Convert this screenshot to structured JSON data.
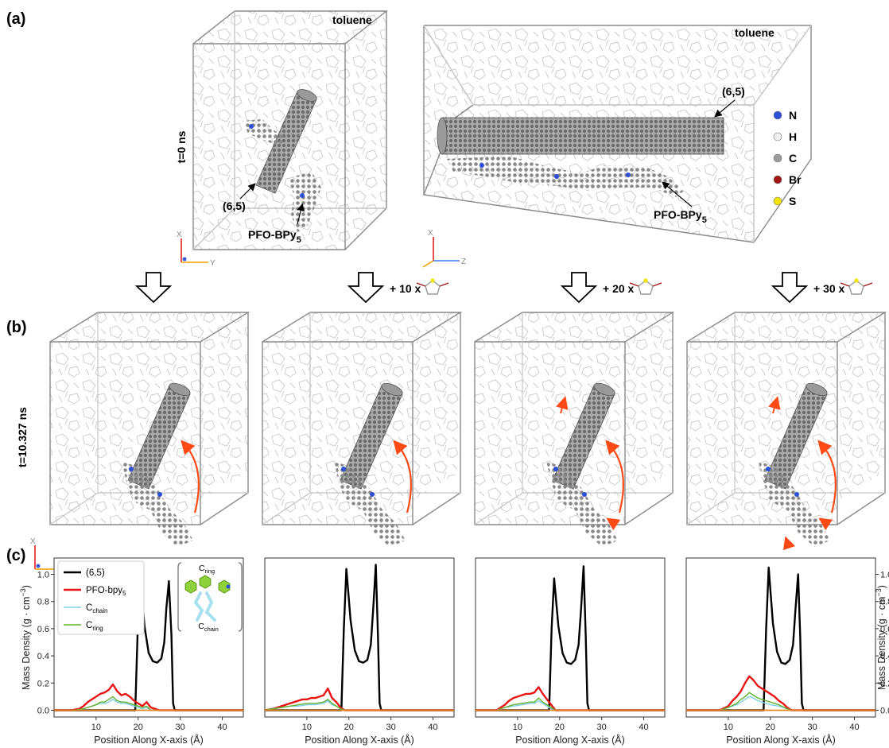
{
  "panels": {
    "a": "(a)",
    "b": "(b)",
    "c": "(c)"
  },
  "row_a": {
    "time_label": "t=0 ns",
    "left_box": {
      "solvent": "toluene",
      "tube": "(6,5)",
      "polymer": "PFO-BPy",
      "polymer_sub": "5"
    },
    "right_box": {
      "solvent": "toluene",
      "tube": "(6,5)",
      "polymer": "PFO-BPy",
      "polymer_sub": "5"
    },
    "axes_left": {
      "vertical": "X",
      "horizontal": "Y"
    },
    "axes_right": {
      "vertical": "X",
      "horizontal": "Z"
    },
    "legend": [
      {
        "symbol": "N",
        "color": "#2b4fd6"
      },
      {
        "symbol": "H",
        "color": "#f0f0f0"
      },
      {
        "symbol": "C",
        "color": "#9a9a9a"
      },
      {
        "symbol": "Br",
        "color": "#a01515"
      },
      {
        "symbol": "S",
        "color": "#f2e400"
      }
    ]
  },
  "row_b": {
    "time_label": "t=10.327 ns",
    "additions": [
      "",
      "+ 10 x",
      "+ 20 x",
      "+ 30 x"
    ],
    "axes": {
      "vertical": "X",
      "horizontal": "Y"
    },
    "colors": {
      "arrow": "#ff4a16",
      "box": "#8a8a8a"
    }
  },
  "chart_data": [
    {
      "type": "line",
      "xlabel": "Position Along X-axis (Å)",
      "ylabel": "Mass Density (g · cm",
      "ylabel_sup": "−3",
      "ylabel_close": ")",
      "xlim": [
        0,
        45
      ],
      "ylim": [
        -0.05,
        1.12
      ],
      "xticks": [
        10,
        20,
        30,
        40
      ],
      "yticks": [
        0.0,
        0.2,
        0.4,
        0.6,
        0.8,
        1.0
      ],
      "legend": [
        "(6,5)",
        "PFO-bpy5",
        "Cchain",
        "Cring"
      ],
      "inset": {
        "top": "C",
        "top_sub": "ring",
        "bottom": "C",
        "bottom_sub": "chain"
      },
      "series": [
        {
          "name": "(6,5)",
          "color": "#000000",
          "x": [
            0,
            19.3,
            19.9,
            20.5,
            21.5,
            22.5,
            23.5,
            24.5,
            25.5,
            26.2,
            26.7,
            27.3,
            27.9,
            28.3,
            28.7,
            45
          ],
          "y": [
            0,
            0,
            0.6,
            1.0,
            0.62,
            0.42,
            0.36,
            0.35,
            0.38,
            0.5,
            0.75,
            0.95,
            0.55,
            0.05,
            0,
            0
          ]
        },
        {
          "name": "PFO-bpy5",
          "color": "#e81414",
          "x": [
            0,
            4,
            6,
            7,
            8,
            9,
            10,
            11,
            12,
            13,
            14,
            15,
            16,
            17,
            18,
            19,
            20,
            21,
            22,
            23,
            24,
            25,
            45
          ],
          "y": [
            0,
            0,
            0.01,
            0.03,
            0.06,
            0.08,
            0.1,
            0.12,
            0.13,
            0.15,
            0.19,
            0.14,
            0.11,
            0.12,
            0.1,
            0.07,
            0.05,
            0.03,
            0.06,
            0.02,
            0.01,
            0,
            0
          ]
        },
        {
          "name": "Cchain",
          "color": "#7fd0e6",
          "x": [
            0,
            5,
            7,
            8,
            9,
            10,
            11,
            12,
            13,
            14,
            15,
            16,
            17,
            18,
            19,
            20,
            21,
            22,
            23,
            45
          ],
          "y": [
            0,
            0,
            0.01,
            0.02,
            0.03,
            0.04,
            0.05,
            0.05,
            0.06,
            0.08,
            0.06,
            0.05,
            0.05,
            0.04,
            0.03,
            0.02,
            0.01,
            0.02,
            0,
            0
          ]
        },
        {
          "name": "Cring",
          "color": "#62b02e",
          "x": [
            0,
            5,
            7,
            8,
            9,
            10,
            11,
            12,
            13,
            14,
            15,
            16,
            17,
            18,
            19,
            20,
            21,
            22,
            23,
            45
          ],
          "y": [
            0,
            0,
            0.01,
            0.02,
            0.03,
            0.04,
            0.06,
            0.06,
            0.08,
            0.1,
            0.07,
            0.06,
            0.06,
            0.05,
            0.04,
            0.03,
            0.02,
            0.03,
            0,
            0
          ]
        },
        {
          "name": "baseline",
          "color": "#e8851c",
          "x": [
            0,
            45
          ],
          "y": [
            0,
            0
          ]
        }
      ]
    },
    {
      "type": "line",
      "xlabel": "Position Along X-axis (Å)",
      "xlim": [
        0,
        45
      ],
      "ylim": [
        -0.05,
        1.12
      ],
      "xticks": [
        10,
        20,
        30,
        40
      ],
      "series": [
        {
          "name": "(6,5)",
          "color": "#000000",
          "x": [
            0,
            18.2,
            18.8,
            19.4,
            20.4,
            21.4,
            22.4,
            23.4,
            24.4,
            25.2,
            25.8,
            26.4,
            26.9,
            27.3,
            27.7,
            45
          ],
          "y": [
            0,
            0,
            0.6,
            1.04,
            0.66,
            0.44,
            0.36,
            0.35,
            0.37,
            0.48,
            0.76,
            1.07,
            0.55,
            0.05,
            0,
            0
          ]
        },
        {
          "name": "PFO-bpy5",
          "color": "#e81414",
          "x": [
            0,
            2,
            3,
            4,
            5,
            6,
            7,
            8,
            9,
            10,
            11,
            12,
            13,
            14,
            15,
            16,
            17,
            18,
            19,
            45
          ],
          "y": [
            0,
            0.01,
            0.02,
            0.03,
            0.04,
            0.05,
            0.06,
            0.07,
            0.08,
            0.08,
            0.09,
            0.09,
            0.1,
            0.11,
            0.16,
            0.09,
            0.06,
            0.02,
            0,
            0
          ]
        },
        {
          "name": "Cchain",
          "color": "#7fd0e6",
          "x": [
            0,
            2,
            4,
            6,
            8,
            10,
            12,
            14,
            15,
            16,
            17,
            18,
            19,
            45
          ],
          "y": [
            0,
            0.01,
            0.02,
            0.03,
            0.03,
            0.04,
            0.04,
            0.05,
            0.07,
            0.04,
            0.03,
            0.01,
            0,
            0
          ]
        },
        {
          "name": "Cring",
          "color": "#62b02e",
          "x": [
            0,
            2,
            4,
            6,
            8,
            10,
            12,
            14,
            15,
            16,
            17,
            18,
            19,
            45
          ],
          "y": [
            0,
            0.01,
            0.02,
            0.03,
            0.04,
            0.05,
            0.05,
            0.06,
            0.08,
            0.05,
            0.03,
            0.01,
            0,
            0
          ]
        },
        {
          "name": "baseline",
          "color": "#e8851c",
          "x": [
            0,
            45
          ],
          "y": [
            0,
            0
          ]
        }
      ]
    },
    {
      "type": "line",
      "xlabel": "Position Along X-axis (Å)",
      "xlim": [
        0,
        45
      ],
      "ylim": [
        -0.05,
        1.12
      ],
      "xticks": [
        10,
        20,
        30,
        40
      ],
      "series": [
        {
          "name": "(6,5)",
          "color": "#000000",
          "x": [
            0,
            17.5,
            18.1,
            18.7,
            19.7,
            20.7,
            21.7,
            22.7,
            23.7,
            24.5,
            25.1,
            25.7,
            26.2,
            26.6,
            27,
            45
          ],
          "y": [
            0,
            0,
            0.6,
            0.97,
            0.62,
            0.42,
            0.35,
            0.34,
            0.37,
            0.48,
            0.75,
            1.06,
            0.55,
            0.05,
            0,
            0
          ]
        },
        {
          "name": "PFO-bpy5",
          "color": "#e81414",
          "x": [
            0,
            5,
            6,
            7,
            8,
            9,
            10,
            11,
            12,
            13,
            14,
            15,
            16,
            17,
            18,
            19,
            45
          ],
          "y": [
            0,
            0,
            0.02,
            0.04,
            0.07,
            0.09,
            0.1,
            0.11,
            0.12,
            0.12,
            0.13,
            0.17,
            0.12,
            0.08,
            0.04,
            0,
            0
          ]
        },
        {
          "name": "Cchain",
          "color": "#7fd0e6",
          "x": [
            0,
            5,
            7,
            9,
            11,
            13,
            14,
            15,
            16,
            17,
            18,
            19,
            45
          ],
          "y": [
            0,
            0,
            0.02,
            0.03,
            0.04,
            0.05,
            0.05,
            0.07,
            0.05,
            0.03,
            0.01,
            0,
            0
          ]
        },
        {
          "name": "Cring",
          "color": "#62b02e",
          "x": [
            0,
            5,
            7,
            9,
            11,
            13,
            14,
            15,
            16,
            17,
            18,
            19,
            45
          ],
          "y": [
            0,
            0,
            0.02,
            0.04,
            0.05,
            0.06,
            0.06,
            0.09,
            0.06,
            0.04,
            0.02,
            0,
            0
          ]
        },
        {
          "name": "baseline",
          "color": "#e8851c",
          "x": [
            0,
            45
          ],
          "y": [
            0,
            0
          ]
        }
      ]
    },
    {
      "type": "line",
      "xlabel": "Position Along X-axis (Å)",
      "yticks": [
        0.0,
        0.2,
        0.4,
        0.6,
        0.8,
        1.0
      ],
      "ylabel": "Mass Density (g · cm",
      "ylabel_sup": "−3",
      "ylabel_close": ")",
      "xlim": [
        0,
        45
      ],
      "ylim": [
        -0.05,
        1.12
      ],
      "xticks": [
        10,
        20,
        30,
        40
      ],
      "series": [
        {
          "name": "(6,5)",
          "color": "#000000",
          "x": [
            0,
            18.4,
            19,
            19.6,
            20.6,
            21.6,
            22.6,
            23.6,
            24.6,
            25.4,
            26,
            26.6,
            27.1,
            27.5,
            27.9,
            45
          ],
          "y": [
            0,
            0,
            0.6,
            1.05,
            0.64,
            0.43,
            0.35,
            0.34,
            0.37,
            0.48,
            0.75,
            1.0,
            0.55,
            0.05,
            0,
            0
          ]
        },
        {
          "name": "PFO-bpy5",
          "color": "#e81414",
          "x": [
            0,
            8,
            10,
            11,
            12,
            13,
            14,
            15,
            16,
            17,
            18,
            19,
            20,
            21,
            22,
            23,
            24,
            25,
            45
          ],
          "y": [
            0,
            0,
            0.03,
            0.07,
            0.1,
            0.14,
            0.2,
            0.25,
            0.22,
            0.18,
            0.16,
            0.14,
            0.12,
            0.1,
            0.07,
            0.05,
            0.02,
            0,
            0
          ]
        },
        {
          "name": "Cchain",
          "color": "#7fd0e6",
          "x": [
            0,
            8,
            10,
            12,
            13,
            14,
            15,
            16,
            17,
            18,
            19,
            20,
            22,
            24,
            25,
            45
          ],
          "y": [
            0,
            0,
            0.02,
            0.04,
            0.06,
            0.08,
            0.1,
            0.09,
            0.07,
            0.06,
            0.05,
            0.04,
            0.03,
            0.01,
            0,
            0
          ]
        },
        {
          "name": "Cring",
          "color": "#62b02e",
          "x": [
            0,
            8,
            10,
            12,
            13,
            14,
            15,
            16,
            17,
            18,
            19,
            20,
            22,
            24,
            25,
            45
          ],
          "y": [
            0,
            0,
            0.02,
            0.05,
            0.08,
            0.1,
            0.13,
            0.11,
            0.09,
            0.08,
            0.07,
            0.06,
            0.04,
            0.01,
            0,
            0
          ]
        },
        {
          "name": "baseline",
          "color": "#e8851c",
          "x": [
            0,
            45
          ],
          "y": [
            0,
            0
          ]
        }
      ]
    }
  ]
}
